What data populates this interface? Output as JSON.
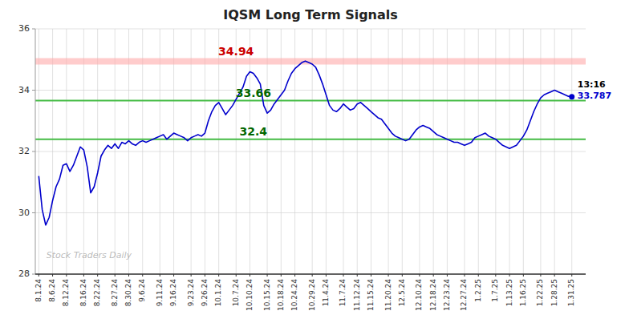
{
  "chart_data": {
    "type": "line",
    "title": "IQSM Long Term Signals",
    "categories": [
      "8.1.24",
      null,
      null,
      null,
      "8.6.24",
      null,
      null,
      null,
      "8.12.24",
      null,
      null,
      null,
      null,
      "8.16.24",
      null,
      null,
      null,
      "8.22.24",
      null,
      null,
      null,
      null,
      "8.27.24",
      null,
      null,
      null,
      "8.30.24",
      null,
      null,
      null,
      "9.6.24",
      null,
      null,
      null,
      null,
      "9.11.24",
      null,
      null,
      null,
      "9.16.24",
      null,
      null,
      null,
      null,
      "9.23.24",
      null,
      null,
      null,
      "9.26.24",
      null,
      null,
      null,
      "10.1.24",
      null,
      null,
      null,
      null,
      "10.7.24",
      null,
      null,
      null,
      "10.10.24",
      null,
      null,
      null,
      null,
      "10.15.24",
      null,
      null,
      null,
      "10.18.24",
      null,
      null,
      null,
      "10.24.24",
      null,
      null,
      null,
      null,
      "10.29.24",
      null,
      null,
      null,
      "11.4.24",
      null,
      null,
      null,
      null,
      "11.7.24",
      null,
      null,
      null,
      "11.12.24",
      null,
      null,
      null,
      "11.15.24",
      null,
      null,
      null,
      null,
      "11.20.24",
      null,
      null,
      null,
      "12.5.24",
      null,
      null,
      null,
      null,
      "12.10.24",
      null,
      null,
      null,
      "12.18.24",
      null,
      null,
      null,
      "12.23.24",
      null,
      null,
      null,
      null,
      "12.27.24",
      null,
      null,
      null,
      "1.2.25",
      null,
      null,
      null,
      null,
      "1.7.25",
      null,
      null,
      null,
      "1.13.25",
      null,
      null,
      null,
      "1.16.25",
      null,
      null,
      null,
      null,
      "1.22.25",
      null,
      null,
      null,
      "1.28.25",
      null,
      null,
      null,
      null,
      "1.31.25"
    ],
    "series": [
      {
        "color": "#0000cc",
        "values": [
          31.2,
          30.1,
          29.6,
          29.85,
          30.4,
          30.85,
          31.1,
          31.55,
          31.6,
          31.35,
          31.55,
          31.85,
          32.15,
          32.05,
          31.5,
          30.65,
          30.85,
          31.3,
          31.85,
          32.05,
          32.2,
          32.1,
          32.25,
          32.1,
          32.3,
          32.25,
          32.35,
          32.25,
          32.2,
          32.3,
          32.35,
          32.3,
          32.35,
          32.4,
          32.45,
          32.5,
          32.55,
          32.4,
          32.5,
          32.6,
          32.55,
          32.5,
          32.45,
          32.35,
          32.45,
          32.5,
          32.55,
          32.5,
          32.6,
          33.0,
          33.3,
          33.5,
          33.6,
          33.4,
          33.2,
          33.35,
          33.5,
          33.7,
          33.9,
          34.1,
          34.45,
          34.6,
          34.55,
          34.4,
          34.2,
          33.5,
          33.25,
          33.35,
          33.55,
          33.7,
          33.85,
          34.0,
          34.3,
          34.55,
          34.7,
          34.8,
          34.9,
          34.95,
          34.9,
          34.85,
          34.75,
          34.5,
          34.2,
          33.85,
          33.5,
          33.35,
          33.3,
          33.4,
          33.55,
          33.45,
          33.35,
          33.4,
          33.55,
          33.6,
          33.5,
          33.4,
          33.3,
          33.2,
          33.1,
          33.05,
          32.9,
          32.75,
          32.6,
          32.5,
          32.45,
          32.4,
          32.35,
          32.4,
          32.55,
          32.7,
          32.8,
          32.85,
          32.8,
          32.75,
          32.65,
          32.55,
          32.5,
          32.45,
          32.4,
          32.35,
          32.3,
          32.3,
          32.25,
          32.2,
          32.25,
          32.3,
          32.45,
          32.5,
          32.55,
          32.6,
          32.5,
          32.45,
          32.4,
          32.3,
          32.2,
          32.15,
          32.1,
          32.15,
          32.2,
          32.35,
          32.5,
          32.7,
          33.0,
          33.3,
          33.55,
          33.75,
          33.85,
          33.9,
          33.95,
          34.0,
          33.95,
          33.9,
          33.85,
          33.8,
          33.787
        ]
      }
    ],
    "ylim": [
      28,
      36
    ],
    "yticks": [
      28,
      30,
      32,
      34,
      36
    ],
    "grid": true,
    "reference_lines": [
      {
        "value": 34.94,
        "color": "#ffaaaa",
        "label": "34.94",
        "label_color": "#cc0000"
      },
      {
        "value": 33.66,
        "color": "#44bb44",
        "label": "33.66",
        "label_color": "#006600"
      },
      {
        "value": 32.4,
        "color": "#44bb44",
        "label": "32.4",
        "label_color": "#006600"
      }
    ],
    "last_point": {
      "label": "13:16",
      "value_label": "33.787",
      "color": "#0000cc"
    },
    "annotations": [
      {
        "text": "Stock Traders Daily",
        "color": "gray"
      }
    ]
  }
}
